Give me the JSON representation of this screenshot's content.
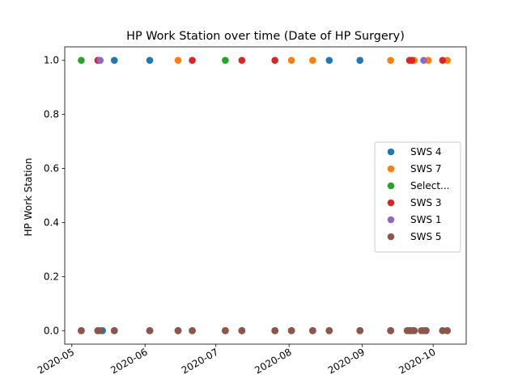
{
  "chart_data": {
    "type": "scatter",
    "title": "HP Work Station over time (Date of HP Surgery)",
    "xlabel": "",
    "ylabel": "HP Work Station",
    "xlim": [
      "2020-04-28",
      "2020-10-15"
    ],
    "ylim": [
      -0.05,
      1.05
    ],
    "x_ticks": [
      "2020-05-01",
      "2020-06-01",
      "2020-07-01",
      "2020-08-01",
      "2020-09-01",
      "2020-10-01"
    ],
    "x_tick_labels": [
      "2020-05",
      "2020-06",
      "2020-07",
      "2020-08",
      "2020-09",
      "2020-10"
    ],
    "y_ticks": [
      0.0,
      0.2,
      0.4,
      0.6,
      0.8,
      1.0
    ],
    "y_tick_labels": [
      "0.0",
      "0.2",
      "0.4",
      "0.6",
      "0.8",
      "1.0"
    ],
    "grid": false,
    "legend_position": "center-right",
    "series": [
      {
        "name": "SWS 4",
        "color": "#1f77b4",
        "points": [
          [
            "2020-05-05",
            0
          ],
          [
            "2020-05-12",
            0
          ],
          [
            "2020-05-14",
            0
          ],
          [
            "2020-05-19",
            1
          ],
          [
            "2020-06-03",
            1
          ],
          [
            "2020-06-15",
            0
          ],
          [
            "2020-06-21",
            0
          ],
          [
            "2020-07-05",
            0
          ],
          [
            "2020-07-12",
            0
          ],
          [
            "2020-07-26",
            0
          ],
          [
            "2020-08-02",
            0
          ],
          [
            "2020-08-11",
            0
          ],
          [
            "2020-08-18",
            1
          ],
          [
            "2020-08-31",
            1
          ],
          [
            "2020-09-13",
            0
          ],
          [
            "2020-09-21",
            0
          ],
          [
            "2020-09-23",
            0
          ],
          [
            "2020-09-28",
            0
          ],
          [
            "2020-10-05",
            0
          ],
          [
            "2020-10-07",
            0
          ]
        ]
      },
      {
        "name": "SWS 7",
        "color": "#ff7f0e",
        "points": [
          [
            "2020-05-05",
            0
          ],
          [
            "2020-05-12",
            0
          ],
          [
            "2020-05-19",
            0
          ],
          [
            "2020-06-03",
            0
          ],
          [
            "2020-06-15",
            1
          ],
          [
            "2020-06-21",
            0
          ],
          [
            "2020-07-05",
            0
          ],
          [
            "2020-07-12",
            0
          ],
          [
            "2020-07-26",
            0
          ],
          [
            "2020-08-02",
            1
          ],
          [
            "2020-08-11",
            1
          ],
          [
            "2020-08-18",
            0
          ],
          [
            "2020-08-31",
            0
          ],
          [
            "2020-09-13",
            1
          ],
          [
            "2020-09-21",
            0
          ],
          [
            "2020-09-23",
            1
          ],
          [
            "2020-09-29",
            1
          ],
          [
            "2020-10-07",
            1
          ]
        ]
      },
      {
        "name": "Select...",
        "color": "#2ca02c",
        "points": [
          [
            "2020-05-05",
            1
          ],
          [
            "2020-05-12",
            0
          ],
          [
            "2020-05-19",
            0
          ],
          [
            "2020-06-03",
            0
          ],
          [
            "2020-06-15",
            0
          ],
          [
            "2020-06-21",
            0
          ],
          [
            "2020-07-05",
            1
          ],
          [
            "2020-07-12",
            0
          ],
          [
            "2020-07-26",
            0
          ],
          [
            "2020-08-02",
            0
          ],
          [
            "2020-08-11",
            0
          ],
          [
            "2020-08-18",
            0
          ],
          [
            "2020-08-31",
            0
          ],
          [
            "2020-09-13",
            0
          ],
          [
            "2020-09-21",
            0
          ],
          [
            "2020-09-28",
            0
          ],
          [
            "2020-10-05",
            0
          ]
        ]
      },
      {
        "name": "SWS 3",
        "color": "#d62728",
        "points": [
          [
            "2020-05-05",
            0
          ],
          [
            "2020-05-12",
            1
          ],
          [
            "2020-05-19",
            0
          ],
          [
            "2020-06-03",
            0
          ],
          [
            "2020-06-15",
            0
          ],
          [
            "2020-06-21",
            1
          ],
          [
            "2020-07-05",
            0
          ],
          [
            "2020-07-12",
            1
          ],
          [
            "2020-07-26",
            1
          ],
          [
            "2020-08-02",
            0
          ],
          [
            "2020-08-11",
            0
          ],
          [
            "2020-08-18",
            0
          ],
          [
            "2020-08-31",
            0
          ],
          [
            "2020-09-13",
            0
          ],
          [
            "2020-09-21",
            1
          ],
          [
            "2020-09-22",
            1
          ],
          [
            "2020-09-28",
            0
          ],
          [
            "2020-10-05",
            1
          ]
        ]
      },
      {
        "name": "SWS 1",
        "color": "#9467bd",
        "points": [
          [
            "2020-05-05",
            0
          ],
          [
            "2020-05-12",
            0
          ],
          [
            "2020-05-13",
            1
          ],
          [
            "2020-05-19",
            0
          ],
          [
            "2020-06-03",
            0
          ],
          [
            "2020-06-15",
            0
          ],
          [
            "2020-07-05",
            0
          ],
          [
            "2020-07-12",
            0
          ],
          [
            "2020-07-26",
            0
          ],
          [
            "2020-08-02",
            0
          ],
          [
            "2020-08-18",
            0
          ],
          [
            "2020-08-31",
            0
          ],
          [
            "2020-09-13",
            0
          ],
          [
            "2020-09-21",
            0
          ],
          [
            "2020-09-27",
            1
          ],
          [
            "2020-09-28",
            0
          ],
          [
            "2020-10-05",
            0
          ],
          [
            "2020-10-07",
            0
          ]
        ]
      },
      {
        "name": "SWS 5",
        "color": "#8c564b",
        "points": [
          [
            "2020-05-05",
            0
          ],
          [
            "2020-05-12",
            0
          ],
          [
            "2020-05-13",
            0
          ],
          [
            "2020-05-19",
            0
          ],
          [
            "2020-06-03",
            0
          ],
          [
            "2020-06-15",
            0
          ],
          [
            "2020-06-21",
            0
          ],
          [
            "2020-07-05",
            0
          ],
          [
            "2020-07-12",
            0
          ],
          [
            "2020-07-26",
            0
          ],
          [
            "2020-08-02",
            0
          ],
          [
            "2020-08-11",
            0
          ],
          [
            "2020-08-18",
            0
          ],
          [
            "2020-08-31",
            0
          ],
          [
            "2020-09-13",
            0
          ],
          [
            "2020-09-20",
            0
          ],
          [
            "2020-09-21",
            0
          ],
          [
            "2020-09-22",
            0
          ],
          [
            "2020-09-23",
            0
          ],
          [
            "2020-09-26",
            0
          ],
          [
            "2020-09-27",
            0
          ],
          [
            "2020-09-28",
            0
          ],
          [
            "2020-10-05",
            0
          ],
          [
            "2020-10-07",
            0
          ]
        ]
      }
    ]
  }
}
